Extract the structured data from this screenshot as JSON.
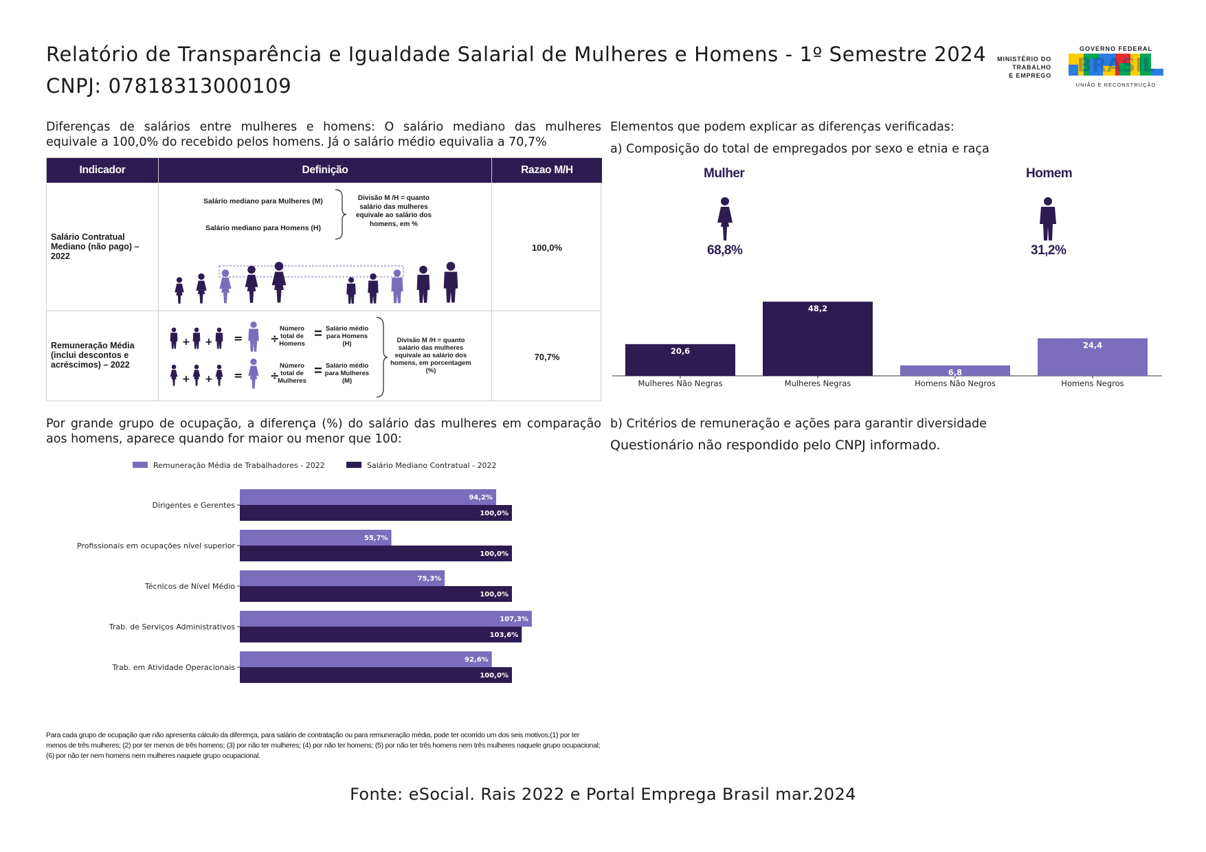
{
  "header": {
    "title": "Relatório de Transparência e Igualdade Salarial de Mulheres e Homens - 1º Semestre 2024",
    "cnpj": "CNPJ: 07818313000109",
    "ministry_line1": "MINISTÉRIO DO",
    "ministry_line2": "TRABALHO",
    "ministry_line3": "E EMPREGO",
    "gov_top": "GOVERNO FEDERAL",
    "gov_word": "BRASIL",
    "gov_bottom": "UNIÃO E RECONSTRUÇÃO"
  },
  "intro": {
    "line1": "Diferenças de salários entre mulheres e homens: O salário mediano das mulheres",
    "line2": "equivale a 100,0% do recebido pelos homens. Já o salário médio equivalia a 70,7%"
  },
  "table": {
    "headers": [
      "Indicador",
      "Definição",
      "Razao M/H"
    ],
    "row1": {
      "label": "Salário Contratual Mediano (não pago) – 2022",
      "median_women": "Salário mediano para Mulheres (M)",
      "median_men": "Salário mediano para Homens (H)",
      "division": "Divisão M /H = quanto salário das mulheres equivale ao salário dos homens, em %",
      "ratio": "100,0%"
    },
    "row2": {
      "label": "Remuneração Média (inclui descontos e acréscimos) – 2022",
      "num_men": "Número total de Homens",
      "avg_men": "Salário médio para Homens (H)",
      "num_women": "Número total de Mulheres",
      "avg_women": "Salário médio para Mulheres (M)",
      "division": "Divisão M /H = quanto salário das mulheres equivale ao salário dos homens, em porcentagem (%)",
      "ratio": "70,7%"
    },
    "plus": "+",
    "equals": "=",
    "divide": "÷"
  },
  "section_a": {
    "heading": "Elementos que podem explicar as diferenças verificadas:",
    "subheading": "a) Composição do total de empregados por sexo e etnia e raça",
    "woman_label": "Mulher",
    "woman_pct": "68,8%",
    "man_label": "Homem",
    "man_pct": "31,2%"
  },
  "section_b": {
    "heading": "b) Critérios de remuneração e ações para garantir diversidade",
    "text": "Questionário não respondido pelo CNPJ informado."
  },
  "occupation_intro": {
    "line1": "Por grande grupo de ocupação, a diferença (%) do salário das mulheres em comparação",
    "line2": "aos homens, aparece quando for maior ou menor que 100:"
  },
  "colors": {
    "dark": "#2d1c52",
    "light": "#7b6dbb"
  },
  "chart_data": [
    {
      "type": "bar",
      "title": "",
      "categories": [
        "Mulheres Não Negras",
        "Mulheres Negras",
        "Homens Não Negros",
        "Homens Negros"
      ],
      "values": [
        20.6,
        48.2,
        6.8,
        24.4
      ],
      "value_labels": [
        "20,6",
        "48,2",
        "6,8",
        "24,4"
      ],
      "bar_colors": [
        "#2d1c52",
        "#2d1c52",
        "#7b6dbb",
        "#7b6dbb"
      ],
      "ylim": [
        0,
        50
      ],
      "xlabel": "",
      "ylabel": ""
    },
    {
      "type": "bar",
      "orientation": "horizontal",
      "categories": [
        "Dirigentes e Gerentes",
        "Profissionais em ocupações nível superior",
        "Técnicos de Nível Médio",
        "Trab. de Serviços Administrativos",
        "Trab. em Atividade Operacionais"
      ],
      "series": [
        {
          "name": "Remuneração Média de Trabalhadores - 2022",
          "values": [
            94.2,
            55.7,
            75.3,
            107.3,
            92.6
          ],
          "labels": [
            "94,2%",
            "55,7%",
            "75,3%",
            "107,3%",
            "92,6%"
          ]
        },
        {
          "name": "Salário Mediano Contratual - 2022",
          "values": [
            100.0,
            100.0,
            100.0,
            103.6,
            100.0
          ],
          "labels": [
            "100,0%",
            "100,0%",
            "100,0%",
            "103,6%",
            "100,0%"
          ]
        }
      ],
      "xlim": [
        0,
        110
      ],
      "legend": "top"
    }
  ],
  "footnote": "Para cada grupo de ocupação que não apresenta cálculo da diferença, para salário de contratação ou para remuneração média, pode ter ocorrido um dos seis motivos:(1) por ter menos de três mulheres; (2) por ter menos de três homens; (3) por não ter mulheres; (4) por não ter homens; (5) por não ter três homens nem três mulheres naquele grupo ocupacional; (6) por não ter nem homens nem mulheres naquele grupo ocupacional.",
  "source": "Fonte: eSocial. Rais 2022 e Portal Emprega Brasil mar.2024"
}
